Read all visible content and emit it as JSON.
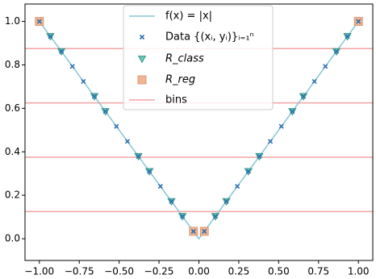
{
  "chart_data": {
    "type": "line",
    "xlim": [
      -1.09,
      1.09
    ],
    "ylim": [
      -0.1,
      1.08
    ],
    "xticks": [
      {
        "value": -1,
        "label": "−1.00"
      },
      {
        "value": -0.75,
        "label": "−0.75"
      },
      {
        "value": -0.5,
        "label": "−0.50"
      },
      {
        "value": -0.25,
        "label": "−0.25"
      },
      {
        "value": 0,
        "label": "0.00"
      },
      0.25,
      {
        "value": 0.5,
        "label": "0.50"
      },
      0.75,
      {
        "value": 1,
        "label": "1.00"
      }
    ],
    "yticks": [
      {
        "value": 0,
        "label": "0.0"
      },
      0.2,
      0.4,
      0.6,
      0.8,
      {
        "value": 1,
        "label": "1.0"
      }
    ],
    "legend": "upper center",
    "series": [
      {
        "name": "f(x) = |x|",
        "style": "line",
        "color": "#86c5d4",
        "x": [
          -1,
          0,
          1
        ],
        "y": [
          1,
          0,
          1
        ]
      },
      {
        "name": "Data {(xᵢ, yᵢ)}ᵢ₌₁ⁿ",
        "style": "x",
        "color": "#2a6fb0",
        "x": [
          -1,
          -0.931,
          -0.862,
          -0.793,
          -0.724,
          -0.655,
          -0.586,
          -0.517,
          -0.448,
          -0.379,
          -0.31,
          -0.241,
          -0.172,
          -0.103,
          -0.034,
          0.034,
          0.103,
          0.172,
          0.241,
          0.31,
          0.379,
          0.448,
          0.517,
          0.586,
          0.655,
          0.724,
          0.793,
          0.862,
          0.931,
          1
        ],
        "y": [
          1,
          0.931,
          0.862,
          0.793,
          0.724,
          0.655,
          0.586,
          0.517,
          0.448,
          0.379,
          0.31,
          0.241,
          0.172,
          0.103,
          0.034,
          0.034,
          0.103,
          0.172,
          0.241,
          0.31,
          0.379,
          0.448,
          0.517,
          0.586,
          0.655,
          0.724,
          0.793,
          0.862,
          0.931,
          1
        ]
      },
      {
        "name": "R_class",
        "style": "triangle",
        "color": "#5cc0b0",
        "x": [
          -0.931,
          -0.862,
          -0.655,
          -0.586,
          -0.379,
          -0.31,
          -0.172,
          -0.103,
          0.103,
          0.172,
          0.31,
          0.379,
          0.586,
          0.655,
          0.862,
          0.931
        ],
        "y": [
          0.931,
          0.862,
          0.655,
          0.586,
          0.379,
          0.31,
          0.172,
          0.103,
          0.103,
          0.172,
          0.31,
          0.379,
          0.586,
          0.655,
          0.862,
          0.931
        ]
      },
      {
        "name": "R_reg",
        "style": "square",
        "color": "#eeae88",
        "x": [
          -1,
          -0.034,
          0.034,
          1
        ],
        "y": [
          1,
          0.034,
          0.034,
          1
        ]
      },
      {
        "name": "bins",
        "style": "hline",
        "color": "#f4a3a3",
        "y": [
          0.125,
          0.375,
          0.625,
          0.875
        ]
      }
    ]
  }
}
